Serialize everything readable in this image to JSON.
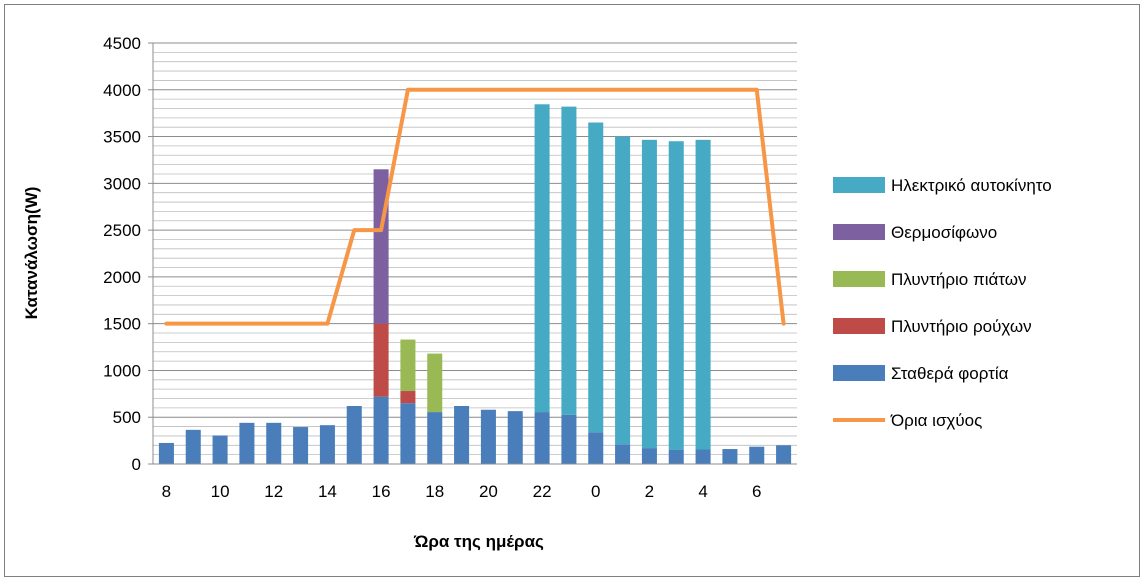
{
  "chart_data": {
    "type": "bar",
    "stacked": true,
    "title": "",
    "xlabel": "Ώρα της ημέρας",
    "ylabel": "Κατανάλωση(W)",
    "ylim": [
      0,
      4500
    ],
    "y_ticks": [
      "0",
      "500",
      "1000",
      "1500",
      "2000",
      "2500",
      "3000",
      "3500",
      "4000",
      "4500"
    ],
    "grid": true,
    "legend_position": "right",
    "categories": [
      "8",
      "9",
      "10",
      "11",
      "12",
      "13",
      "14",
      "15",
      "16",
      "17",
      "18",
      "19",
      "20",
      "21",
      "22",
      "23",
      "0",
      "1",
      "2",
      "3",
      "4",
      "5",
      "6",
      "7"
    ],
    "x_tick_labels": [
      "8",
      "",
      "10",
      "",
      "12",
      "",
      "14",
      "",
      "16",
      "",
      "18",
      "",
      "20",
      "",
      "22",
      "",
      "0",
      "",
      "2",
      "",
      "4",
      "",
      "6",
      ""
    ],
    "series": [
      {
        "name": "Σταθερά φορτία",
        "color": "#4a7ebb",
        "values": [
          225,
          365,
          305,
          440,
          440,
          395,
          415,
          620,
          720,
          650,
          555,
          620,
          580,
          565,
          555,
          525,
          340,
          210,
          170,
          150,
          155,
          160,
          185,
          200
        ]
      },
      {
        "name": "Πλυντήριο ρούχων",
        "color": "#be4b48",
        "values": [
          0,
          0,
          0,
          0,
          0,
          0,
          0,
          0,
          780,
          130,
          0,
          0,
          0,
          0,
          0,
          0,
          0,
          0,
          0,
          0,
          0,
          0,
          0,
          0
        ]
      },
      {
        "name": "Πλυντήριο πιάτων",
        "color": "#98b954",
        "values": [
          0,
          0,
          0,
          0,
          0,
          0,
          0,
          0,
          0,
          550,
          625,
          0,
          0,
          0,
          0,
          0,
          0,
          0,
          0,
          0,
          0,
          0,
          0,
          0
        ]
      },
      {
        "name": "Θερμοσίφωνο",
        "color": "#7d60a0",
        "values": [
          0,
          0,
          0,
          0,
          0,
          0,
          0,
          0,
          1650,
          0,
          0,
          0,
          0,
          0,
          0,
          0,
          0,
          0,
          0,
          0,
          0,
          0,
          0,
          0
        ]
      },
      {
        "name": "Ηλεκτρικό αυτοκίνητο",
        "color": "#46aac5",
        "values": [
          0,
          0,
          0,
          0,
          0,
          0,
          0,
          0,
          0,
          0,
          0,
          0,
          0,
          0,
          3290,
          3295,
          3310,
          3290,
          3295,
          3300,
          3310,
          0,
          0,
          0
        ]
      }
    ],
    "line_series": {
      "name": "Όρια ισχύος",
      "color": "#f79646",
      "values": [
        1500,
        1500,
        1500,
        1500,
        1500,
        1500,
        1500,
        2500,
        2500,
        4000,
        4000,
        4000,
        4000,
        4000,
        4000,
        4000,
        4000,
        4000,
        4000,
        4000,
        4000,
        4000,
        4000,
        1500
      ]
    },
    "legend_order": [
      "Ηλεκτρικό αυτοκίνητο",
      "Θερμοσίφωνο",
      "Πλυντήριο πιάτων",
      "Πλυντήριο ρούχων",
      "Σταθερά φορτία",
      "Όρια ισχύος"
    ]
  }
}
